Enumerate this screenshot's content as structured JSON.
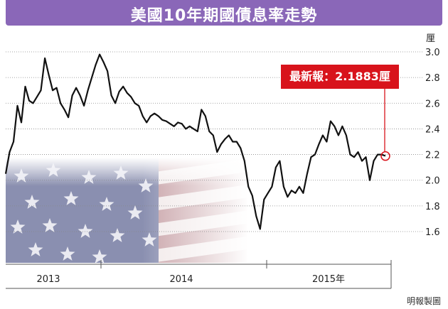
{
  "header": {
    "title": "美國10年期國債息率走勢"
  },
  "unit_label": "厘",
  "callout": {
    "text": "最新報：2.1883厘"
  },
  "credit": "明報製圖",
  "colors": {
    "title_bg": "#8a67b8",
    "line": "#111111",
    "callout_bg": "#d8131b",
    "marker": "#d8131b",
    "grid": "#888888"
  },
  "chart_data": {
    "type": "line",
    "title": "美國10年期國債息率走勢",
    "ylabel": "厘",
    "ylim": [
      1.5,
      3.05
    ],
    "yticks": [
      "3.0",
      "2.8",
      "2.6",
      "2.4",
      "2.2",
      "2.0",
      "1.8",
      "1.6"
    ],
    "xticks": [
      "2013",
      "2014",
      "2015年"
    ],
    "grid": true,
    "series": [
      {
        "values": [
          2.05,
          2.22,
          2.3,
          2.58,
          2.45,
          2.73,
          2.62,
          2.6,
          2.65,
          2.7,
          2.95,
          2.82,
          2.7,
          2.72,
          2.6,
          2.55,
          2.49,
          2.66,
          2.72,
          2.66,
          2.58,
          2.7,
          2.8,
          2.9,
          2.98,
          2.92,
          2.85,
          2.66,
          2.6,
          2.69,
          2.73,
          2.68,
          2.65,
          2.6,
          2.58,
          2.5,
          2.45,
          2.5,
          2.52,
          2.5,
          2.47,
          2.46,
          2.44,
          2.42,
          2.45,
          2.44,
          2.4,
          2.42,
          2.4,
          2.38,
          2.55,
          2.5,
          2.38,
          2.35,
          2.22,
          2.28,
          2.32,
          2.35,
          2.3,
          2.3,
          2.25,
          2.15,
          1.95,
          1.88,
          1.72,
          1.62,
          1.85,
          1.9,
          1.95,
          2.1,
          2.15,
          1.95,
          1.87,
          1.92,
          1.9,
          1.95,
          1.9,
          2.05,
          2.18,
          2.2,
          2.28,
          2.35,
          2.3,
          2.46,
          2.42,
          2.35,
          2.42,
          2.35,
          2.2,
          2.18,
          2.22,
          2.15,
          2.18,
          2.0,
          2.15,
          2.2,
          2.2,
          2.19
        ]
      }
    ],
    "latest_value": 2.1883
  }
}
